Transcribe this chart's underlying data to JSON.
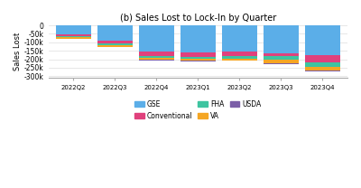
{
  "title": "(b) Sales Lost to Lock-In by Quarter",
  "xlabel": "",
  "ylabel": "Sales Lost",
  "quarters": [
    "2022Q2",
    "2022Q3",
    "2022Q4",
    "2023Q1",
    "2023Q2",
    "2023Q3",
    "2023Q4"
  ],
  "categories": [
    "GSE",
    "Conventional",
    "FHA",
    "VA",
    "USDA"
  ],
  "colors": {
    "GSE": "#5BAEE8",
    "Conventional": "#E0417C",
    "FHA": "#3EC4A0",
    "VA": "#F5A623",
    "USDA": "#7B5EA7"
  },
  "values": {
    "GSE": [
      -55000,
      -90000,
      -155000,
      -160000,
      -155000,
      -165000,
      -175000
    ],
    "Conventional": [
      -10000,
      -18000,
      -25000,
      -25000,
      -25000,
      -18000,
      -45000
    ],
    "FHA": [
      -5000,
      -10000,
      -12000,
      -12000,
      -15000,
      -22000,
      -25000
    ],
    "VA": [
      -7000,
      -8000,
      -12000,
      -12000,
      -12000,
      -20000,
      -22000
    ],
    "USDA": [
      -1000,
      -1000,
      -2000,
      -2000,
      -2000,
      -3000,
      -5000
    ]
  },
  "ylim": [
    -310000,
    5000
  ],
  "yticks": [
    0,
    -50000,
    -100000,
    -150000,
    -200000,
    -250000,
    -300000
  ],
  "ytick_labels": [
    "0",
    "-50k",
    "-100k",
    "-150k",
    "-200k",
    "-250k",
    "-300k"
  ],
  "background_color": "#FFFFFF",
  "grid_color": "#DDDDDD",
  "figsize": [
    4.0,
    2.08
  ],
  "dpi": 100
}
